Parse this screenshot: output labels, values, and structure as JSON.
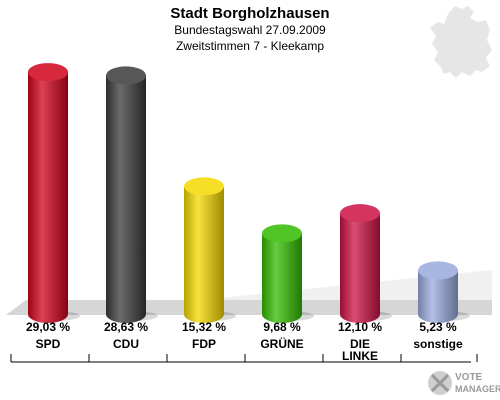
{
  "header": {
    "title": "Stadt Borgholzhausen",
    "subtitle": "Bundestagswahl 27.09.2009",
    "subtitle2": "Zweitstimmen 7 - Kleekamp"
  },
  "logo": {
    "line1": "VOTE",
    "line2": "MANAGER"
  },
  "chart_data": {
    "type": "bar",
    "categories": [
      "SPD",
      "CDU",
      "FDP",
      "GRÜNE",
      "DIE LINKE",
      "sonstige"
    ],
    "values": [
      29.03,
      28.63,
      15.32,
      9.68,
      12.1,
      5.23
    ],
    "value_labels": [
      "29,03 %",
      "28,63 %",
      "15,32 %",
      "9,68 %",
      "12,10 %",
      "5,23 %"
    ],
    "colors": [
      "#d0021b",
      "#3a3a3a",
      "#f5d800",
      "#33bb00",
      "#cc1144",
      "#99aadd"
    ],
    "ylim": [
      0,
      30
    ],
    "grid": false,
    "legend": "none"
  }
}
